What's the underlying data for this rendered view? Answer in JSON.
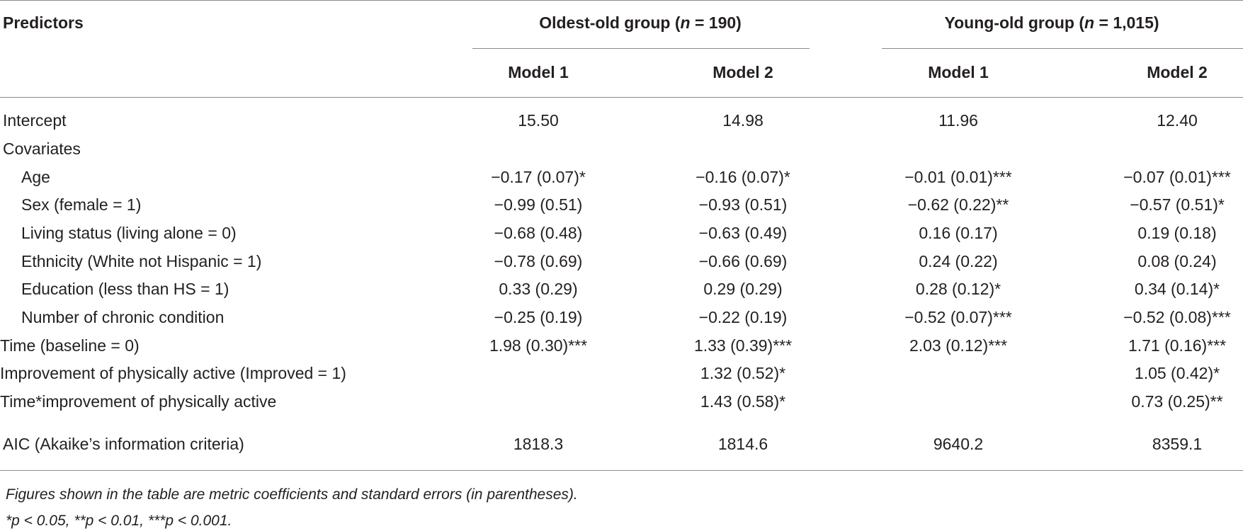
{
  "header": {
    "predictors_label": "Predictors",
    "groups": [
      {
        "name": "Oldest-old group (",
        "n_sym": "n",
        "n_val": " = 190)"
      },
      {
        "name": "Young-old group (",
        "n_sym": "n",
        "n_val": " = 1,015)"
      }
    ],
    "models": [
      "Model 1",
      "Model 2",
      "Model 1",
      "Model 2"
    ]
  },
  "rows": [
    {
      "label": "Intercept",
      "cells": [
        "15.50",
        "14.98",
        "11.96",
        "12.40"
      ]
    },
    {
      "label": "Covariates",
      "cells": [
        "",
        "",
        "",
        ""
      ]
    },
    {
      "label": "Age",
      "cells": [
        "−0.17 (0.07)*",
        "−0.16 (0.07)*",
        "−0.01 (0.01)***",
        "−0.07 (0.01)***"
      ]
    },
    {
      "label": "Sex (female = 1)",
      "cells": [
        "−0.99 (0.51)",
        "−0.93 (0.51)",
        "−0.62 (0.22)**",
        "−0.57 (0.51)*"
      ]
    },
    {
      "label": "Living status (living alone = 0)",
      "cells": [
        "−0.68 (0.48)",
        "−0.63 (0.49)",
        "0.16 (0.17)",
        "0.19 (0.18)"
      ]
    },
    {
      "label": "Ethnicity (White not Hispanic = 1)",
      "cells": [
        "−0.78 (0.69)",
        "−0.66 (0.69)",
        "0.24 (0.22)",
        "0.08 (0.24)"
      ]
    },
    {
      "label": "Education (less than HS = 1)",
      "cells": [
        "0.33 (0.29)",
        "0.29 (0.29)",
        "0.28 (0.12)*",
        "0.34 (0.14)*"
      ]
    },
    {
      "label": "Number of chronic condition",
      "cells": [
        "−0.25 (0.19)",
        "−0.22 (0.19)",
        "−0.52 (0.07)***",
        "−0.52 (0.08)***"
      ]
    },
    {
      "label": "Time (baseline = 0)",
      "cells": [
        "1.98 (0.30)***",
        "1.33 (0.39)***",
        "2.03 (0.12)***",
        "1.71 (0.16)***"
      ]
    },
    {
      "label": "Improvement of physically active (Improved = 1)",
      "cells": [
        "",
        "1.32 (0.52)*",
        "",
        "1.05 (0.42)*"
      ]
    },
    {
      "label": "Time*improvement of physically active",
      "cells": [
        "",
        "1.43 (0.58)*",
        "",
        "0.73 (0.25)**"
      ]
    },
    {
      "label": "AIC (Akaike’s information criteria)",
      "cells": [
        "1818.3",
        "1814.6",
        "9640.2",
        "8359.1"
      ]
    }
  ],
  "footnotes": [
    "Figures shown in the table are metric coefficients and standard errors (in parentheses).",
    "*p < 0.05, **p < 0.01, ***p < 0.001."
  ]
}
